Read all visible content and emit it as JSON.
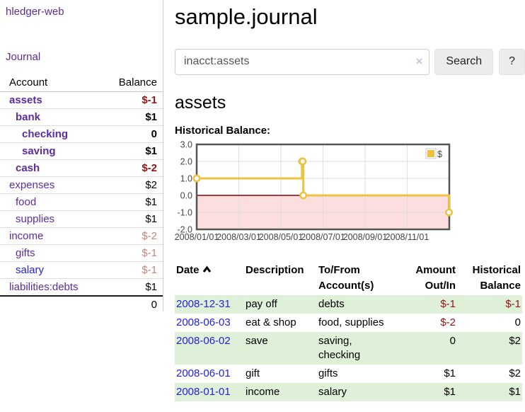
{
  "colors": {
    "purple_link": "#5b2d9b",
    "blue_link": "#2222dd",
    "negative": "#8f1515",
    "negative_light": "#c48282",
    "row_shade_green": "#dff0d8",
    "button_bg": "#ececec",
    "chart_line": "#edc240",
    "chart_negative_region": "#fcdede",
    "chart_zero_line": "#8b0000",
    "chart_border": "#545454",
    "chart_grid": "#dddddd"
  },
  "sidebar": {
    "brand": "hledger-web",
    "journal_link": "Journal",
    "accounts_table": {
      "headers": {
        "account": "Account",
        "balance": "Balance"
      },
      "rows": [
        {
          "name": "assets",
          "depth": 0,
          "bold": true,
          "link_color": "purple",
          "balance": "$-1",
          "balance_class": "neg"
        },
        {
          "name": "bank",
          "depth": 1,
          "bold": true,
          "link_color": "purple",
          "balance": "$1",
          "balance_class": ""
        },
        {
          "name": "checking",
          "depth": 2,
          "bold": true,
          "link_color": "purple",
          "balance": "0",
          "balance_class": ""
        },
        {
          "name": "saving",
          "depth": 2,
          "bold": true,
          "link_color": "purple",
          "balance": "$1",
          "balance_class": ""
        },
        {
          "name": "cash",
          "depth": 1,
          "bold": true,
          "link_color": "purple",
          "balance": "$-2",
          "balance_class": "neg"
        },
        {
          "name": "expenses",
          "depth": 0,
          "bold": false,
          "link_color": "purple",
          "balance": "$2",
          "balance_class": ""
        },
        {
          "name": "food",
          "depth": 1,
          "bold": false,
          "link_color": "purple",
          "balance": "$1",
          "balance_class": ""
        },
        {
          "name": "supplies",
          "depth": 1,
          "bold": false,
          "link_color": "purple",
          "balance": "$1",
          "balance_class": ""
        },
        {
          "name": "income",
          "depth": 0,
          "bold": false,
          "link_color": "purple",
          "balance": "$-2",
          "balance_class": "neg-light"
        },
        {
          "name": "gifts",
          "depth": 1,
          "bold": false,
          "link_color": "purple",
          "balance": "$-1",
          "balance_class": "neg-light"
        },
        {
          "name": "salary",
          "depth": 1,
          "bold": false,
          "link_color": "blue",
          "balance": "$-1",
          "balance_class": "neg-light"
        },
        {
          "name": "liabilities:debts",
          "depth": 0,
          "bold": false,
          "link_color": "purple",
          "balance": "$1",
          "balance_class": ""
        }
      ],
      "total": "0"
    }
  },
  "header": {
    "title": "sample.journal"
  },
  "search": {
    "value": "inacct:assets",
    "clear_icon": "×",
    "search_button": "Search",
    "help_button": "?"
  },
  "account_page": {
    "heading": "assets",
    "chart_heading": "Historical Balance:"
  },
  "chart_data": {
    "type": "line",
    "step": true,
    "title": "Historical Balance:",
    "series": [
      {
        "name": "$",
        "color": "#edc240",
        "points": [
          {
            "x": "2008-01-01",
            "y": 1
          },
          {
            "x": "2008-06-01",
            "y": 2
          },
          {
            "x": "2008-06-02",
            "y": 2
          },
          {
            "x": "2008-06-03",
            "y": 0
          },
          {
            "x": "2008-12-31",
            "y": -1
          }
        ]
      }
    ],
    "x_ticks": [
      "2008/01/01",
      "2008/03/01",
      "2008/05/01",
      "2008/07/01",
      "2008/09/01",
      "2008/11/01"
    ],
    "y_ticks": [
      3.0,
      2.0,
      1.0,
      0.0,
      -1.0,
      -2.0
    ],
    "ylim": [
      -2,
      3
    ],
    "xlim_months": [
      0,
      12
    ],
    "grid": true,
    "legend_position": "top-right",
    "negative_region_color": "#fcdede",
    "zero_line_color": "#8b0000",
    "grid_color": "#dddddd",
    "border_color": "#545454"
  },
  "register": {
    "headers": {
      "date": "Date",
      "description": "Description",
      "accounts": "To/From Account(s)",
      "amount": "Amount Out/In",
      "balance": "Historical Balance"
    },
    "rows": [
      {
        "date": "2008-12-31",
        "description": "pay off",
        "accounts": "debts",
        "amount": "$-1",
        "amount_neg": true,
        "balance": "$-1",
        "balance_neg": true,
        "shaded": true
      },
      {
        "date": "2008-06-03",
        "description": "eat & shop",
        "accounts": "food, supplies",
        "amount": "$-2",
        "amount_neg": true,
        "balance": "0",
        "balance_neg": false,
        "shaded": false
      },
      {
        "date": "2008-06-02",
        "description": "save",
        "accounts": "saving,\nchecking",
        "amount": "0",
        "amount_neg": false,
        "balance": "$2",
        "balance_neg": false,
        "shaded": true
      },
      {
        "date": "2008-06-01",
        "description": "gift",
        "accounts": "gifts",
        "amount": "$1",
        "amount_neg": false,
        "balance": "$2",
        "balance_neg": false,
        "shaded": false
      },
      {
        "date": "2008-01-01",
        "description": "income",
        "accounts": "salary",
        "amount": "$1",
        "amount_neg": false,
        "balance": "$1",
        "balance_neg": false,
        "shaded": true
      }
    ]
  }
}
